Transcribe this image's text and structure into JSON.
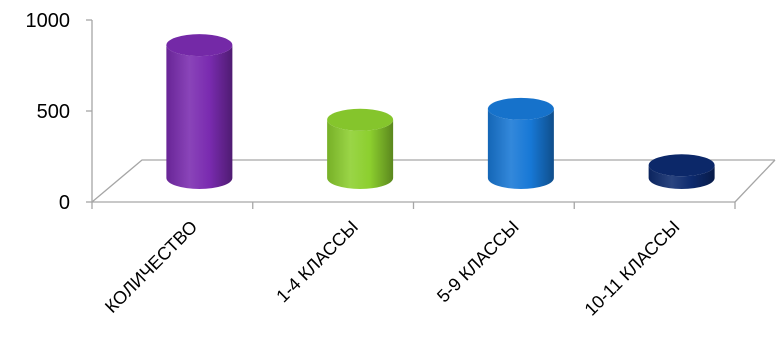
{
  "chart_data": {
    "type": "bar",
    "categories": [
      "КОЛИЧЕСТВО",
      "1-4  КЛАССЫ",
      "5-9  КЛАССЫ",
      "10-11 КЛАССЫ"
    ],
    "values": [
      730,
      320,
      380,
      70
    ],
    "bar_colors": [
      "#7A2BB0",
      "#8CCF2E",
      "#1778D6",
      "#0D2A6E"
    ],
    "ylim": [
      0,
      1000
    ],
    "yticks": [
      0,
      500,
      1000
    ],
    "grid": false,
    "legend": "none",
    "style": "3d-cylinder"
  }
}
